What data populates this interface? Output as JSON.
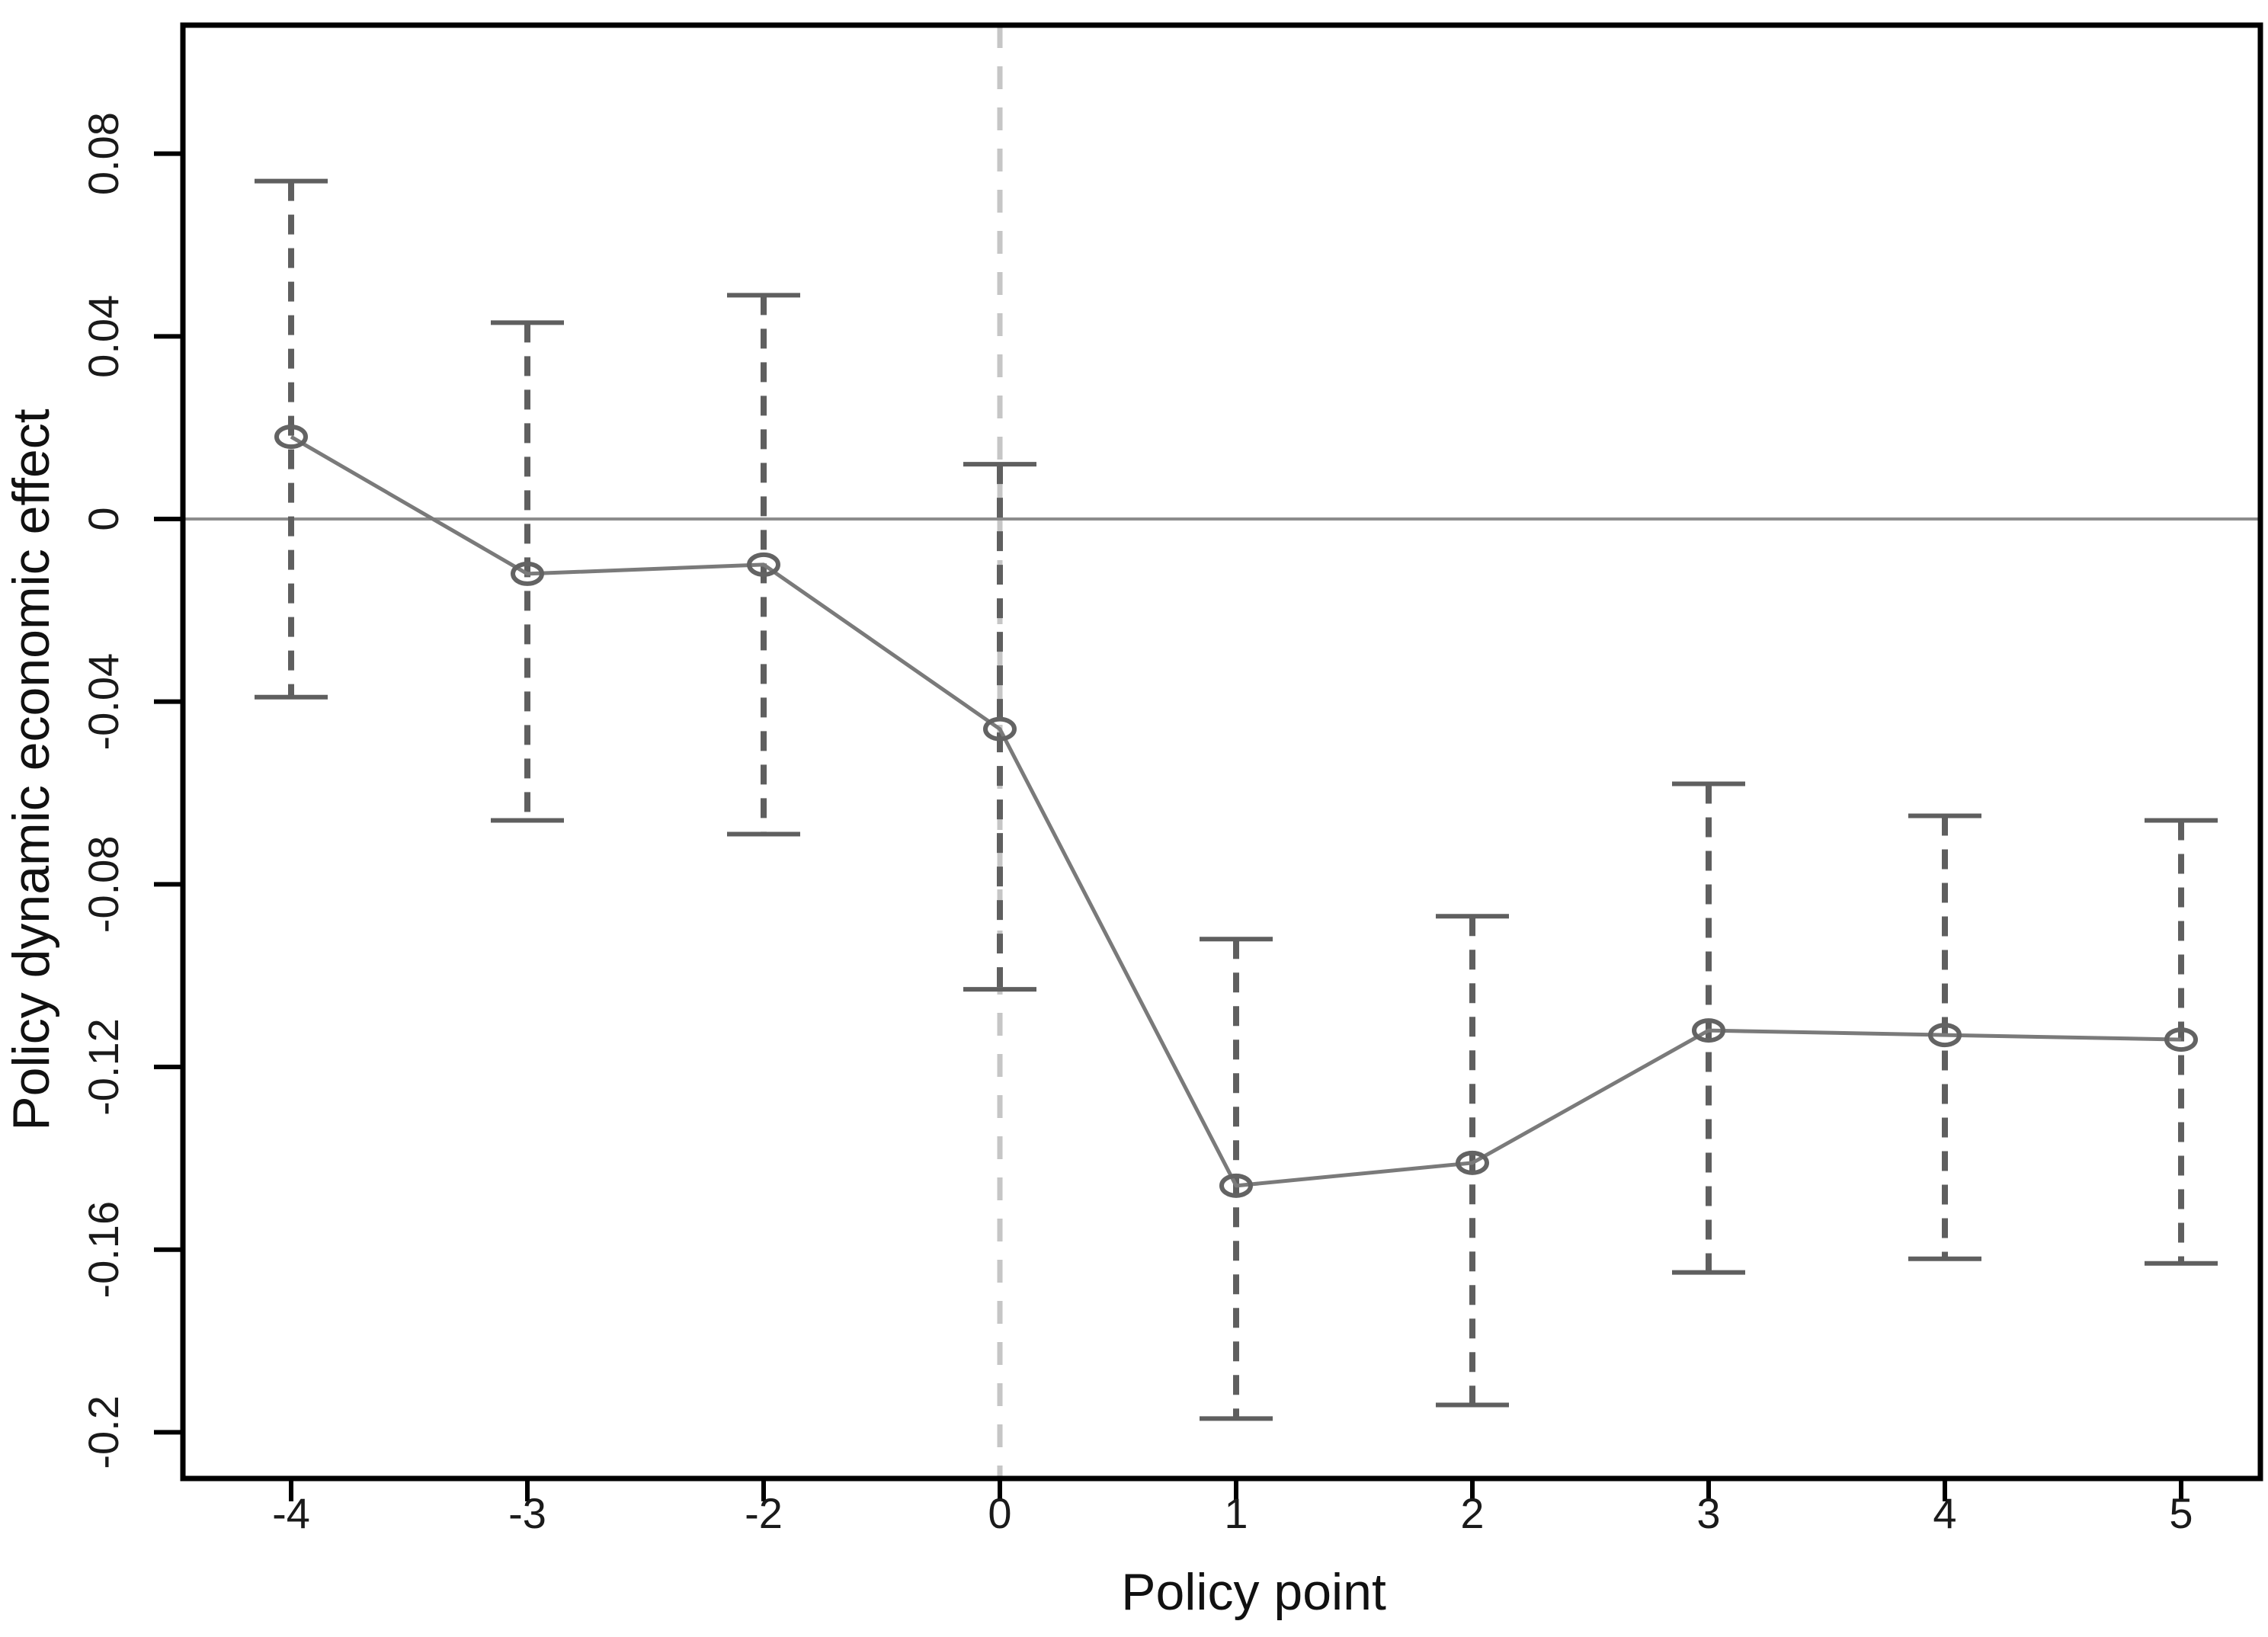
{
  "chart_data": {
    "type": "line",
    "subtype": "event-study-point-estimates-with-dashed-error-bars",
    "title": "",
    "xlabel": "Policy point",
    "ylabel": "Policy dynamic economic effect",
    "categories": [
      "-4",
      "-3",
      "-2",
      "0",
      "1",
      "2",
      "3",
      "4",
      "5"
    ],
    "series": [
      {
        "name": "estimate",
        "values": [
          0.018,
          -0.012,
          -0.01,
          -0.046,
          -0.146,
          -0.141,
          -0.112,
          -0.113,
          -0.114
        ]
      },
      {
        "name": "ci_lower",
        "values": [
          -0.039,
          -0.066,
          -0.069,
          -0.103,
          -0.197,
          -0.194,
          -0.165,
          -0.162,
          -0.163
        ]
      },
      {
        "name": "ci_upper",
        "values": [
          0.074,
          0.043,
          0.049,
          0.012,
          -0.092,
          -0.087,
          -0.058,
          -0.065,
          -0.066
        ]
      }
    ],
    "y_ticks": [
      0.08,
      0.04,
      0,
      -0.04,
      -0.08,
      -0.12,
      -0.16,
      -0.2
    ],
    "y_tick_labels": [
      "0.08",
      "0.04",
      "0",
      "-0.04",
      "-0.08",
      "-0.12",
      "-0.16",
      "-0.2"
    ],
    "x_tick_labels": [
      "-4",
      "-3",
      "-2",
      "0",
      "1",
      "2",
      "3",
      "4",
      "5"
    ],
    "ylim": [
      -0.21,
      0.108
    ],
    "grid": false,
    "legend": false,
    "marker": "open-circle",
    "reference_lines": {
      "horizontal_at_y": 0,
      "vertical_at_x_category": "0",
      "vertical_style": "dashed"
    },
    "error_bar_style": "dashed-with-caps",
    "colors": {
      "axis": "#000000",
      "text": "#1a1a1a",
      "series_line": "#7a7a7a",
      "marker": "#636363",
      "error_bar": "#5f5f5f",
      "zero_line": "#8c8c8c",
      "reference_line": "#c6c6c6",
      "background": "#ffffff"
    }
  }
}
